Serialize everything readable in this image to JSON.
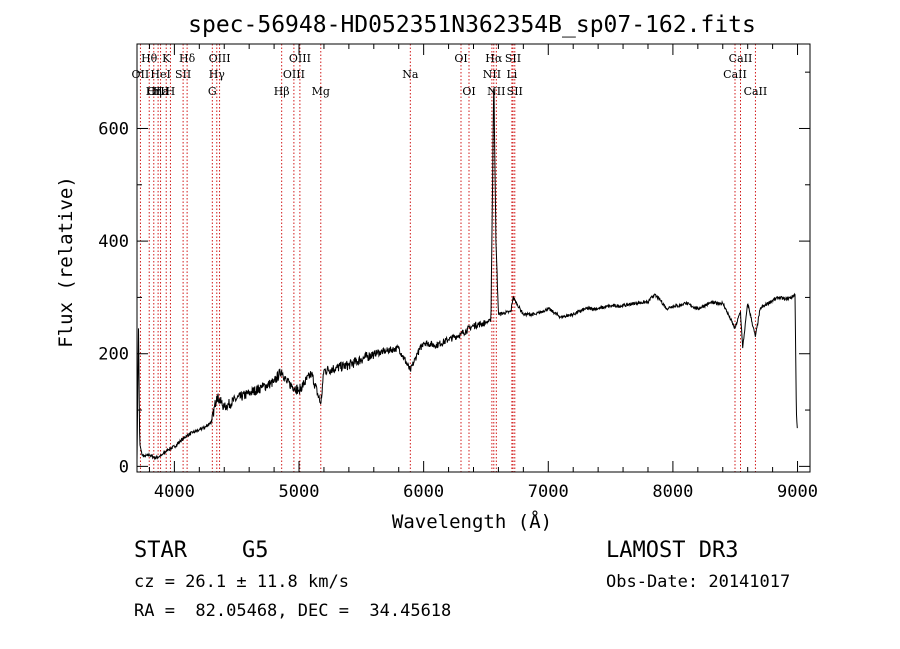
{
  "chart_data": {
    "type": "line",
    "title": "spec-56948-HD052351N362354B_sp07-162.fits",
    "xlabel": "Wavelength (Å)",
    "ylabel": "Flux (relative)",
    "xlim": [
      3700,
      9100
    ],
    "ylim": [
      -10,
      750
    ],
    "x_ticks": [
      4000,
      5000,
      6000,
      7000,
      8000,
      9000
    ],
    "x_tick_labels": [
      "4000",
      "5000",
      "6000",
      "7000",
      "8000",
      "9000"
    ],
    "y_ticks": [
      0,
      200,
      400,
      600
    ],
    "y_tick_labels": [
      "0",
      "200",
      "400",
      "600"
    ],
    "spectrum_anchor_points": {
      "wavelength": [
        3700,
        3712,
        3722,
        3740,
        3760,
        3800,
        3850,
        3900,
        3950,
        4000,
        4050,
        4101,
        4150,
        4200,
        4250,
        4300,
        4340,
        4400,
        4500,
        4600,
        4700,
        4800,
        4861,
        4900,
        5000,
        5100,
        5175,
        5200,
        5300,
        5400,
        5500,
        5600,
        5700,
        5800,
        5893,
        5950,
        6000,
        6100,
        6200,
        6300,
        6400,
        6500,
        6540,
        6563,
        6580,
        6600,
        6700,
        6717,
        6800,
        6900,
        7000,
        7100,
        7200,
        7300,
        7400,
        7500,
        7600,
        7700,
        7800,
        7850,
        7900,
        7950,
        8000,
        8050,
        8100,
        8200,
        8300,
        8400,
        8498,
        8542,
        8560,
        8600,
        8662,
        8700,
        8800,
        8850,
        8900,
        8950,
        8980,
        8990,
        9000
      ],
      "flux": [
        10,
        245,
        40,
        20,
        18,
        20,
        15,
        20,
        30,
        35,
        45,
        55,
        60,
        65,
        70,
        80,
        125,
        105,
        120,
        130,
        140,
        150,
        170,
        150,
        135,
        165,
        110,
        170,
        175,
        180,
        190,
        200,
        205,
        210,
        170,
        200,
        220,
        215,
        225,
        235,
        250,
        255,
        260,
        690,
        400,
        270,
        275,
        300,
        270,
        270,
        280,
        265,
        270,
        280,
        280,
        285,
        285,
        290,
        292,
        305,
        295,
        280,
        285,
        285,
        290,
        280,
        290,
        290,
        245,
        275,
        210,
        290,
        230,
        280,
        295,
        300,
        297,
        300,
        305,
        100,
        60
      ]
    },
    "spectral_lines": [
      {
        "name": "Hθ",
        "wavelength": 3798,
        "row": 1
      },
      {
        "name": "OII",
        "wavelength": 3727,
        "row": 2
      },
      {
        "name": "OIII",
        "wavelength": 3869,
        "row": 3
      },
      {
        "name": "Hε",
        "wavelength": 3889,
        "row": 3
      },
      {
        "name": "HeI",
        "wavelength": 3889,
        "row": 2
      },
      {
        "name": "Hη",
        "wavelength": 3835,
        "row": 3
      },
      {
        "name": "K",
        "wavelength": 3934,
        "row": 1
      },
      {
        "name": "H",
        "wavelength": 3968,
        "row": 3
      },
      {
        "name": "SII",
        "wavelength": 4070,
        "row": 2
      },
      {
        "name": "Hδ",
        "wavelength": 4102,
        "row": 1
      },
      {
        "name": "OIII",
        "wavelength": 4363,
        "row": 1
      },
      {
        "name": "Hγ",
        "wavelength": 4340,
        "row": 2
      },
      {
        "name": "G",
        "wavelength": 4304,
        "row": 3
      },
      {
        "name": "Hβ",
        "wavelength": 4861,
        "row": 3
      },
      {
        "name": "OIII",
        "wavelength": 4959,
        "row": 2
      },
      {
        "name": "OIII",
        "wavelength": 5007,
        "row": 1
      },
      {
        "name": "Mg",
        "wavelength": 5175,
        "row": 3
      },
      {
        "name": "Na",
        "wavelength": 5893,
        "row": 2
      },
      {
        "name": "OI",
        "wavelength": 6300,
        "row": 1
      },
      {
        "name": "OI",
        "wavelength": 6364,
        "row": 3
      },
      {
        "name": "Hα",
        "wavelength": 6563,
        "row": 1
      },
      {
        "name": "NII",
        "wavelength": 6548,
        "row": 2
      },
      {
        "name": "NII",
        "wavelength": 6583,
        "row": 3
      },
      {
        "name": "SII",
        "wavelength": 6717,
        "row": 1
      },
      {
        "name": "Li",
        "wavelength": 6708,
        "row": 2
      },
      {
        "name": "SII",
        "wavelength": 6731,
        "row": 3
      },
      {
        "name": "CaII",
        "wavelength": 8542,
        "row": 1
      },
      {
        "name": "CaII",
        "wavelength": 8498,
        "row": 2
      },
      {
        "name": "CaII",
        "wavelength": 8662,
        "row": 3
      }
    ]
  },
  "info": {
    "object_class": "STAR",
    "subclass": "G5",
    "survey": "LAMOST DR3",
    "redshift_line": "cz = 26.1 ± 11.8 km/s",
    "obs_date_line": "Obs-Date: 20141017",
    "coords_line": "RA =  82.05468, DEC =  34.45618"
  },
  "colors": {
    "axes": "#000000",
    "spectrum": "#000000",
    "line_marker": "#cc0000"
  }
}
